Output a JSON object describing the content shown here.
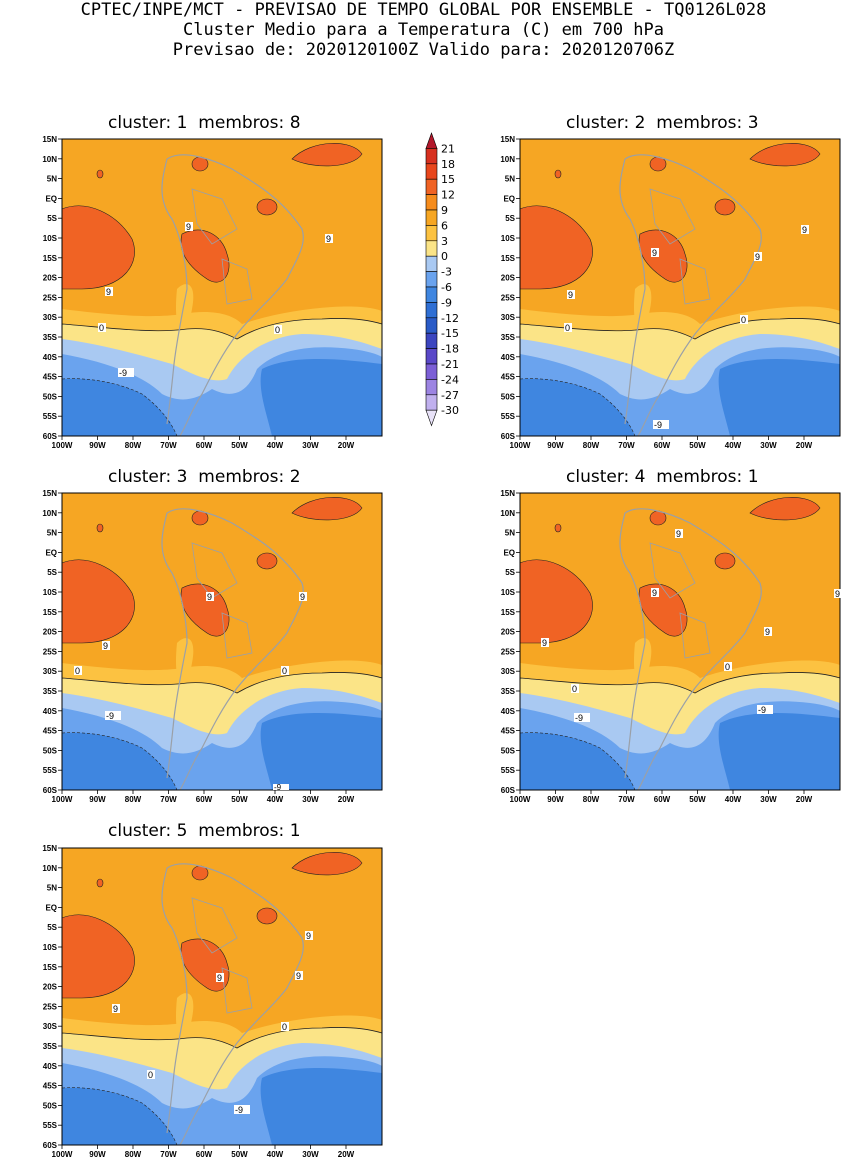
{
  "header": {
    "line1": "CPTEC/INPE/MCT - PREVISAO DE TEMPO GLOBAL POR ENSEMBLE - TQ0126L028",
    "line2": "Cluster Medio para a Temperatura (C) em 700 hPa",
    "line3": "Previsao de: 2020120100Z   Valido para: 2020120706Z"
  },
  "axes": {
    "lat_labels": [
      "15N",
      "10N",
      "5N",
      "EQ",
      "5S",
      "10S",
      "15S",
      "20S",
      "25S",
      "30S",
      "35S",
      "40S",
      "45S",
      "50S",
      "55S",
      "60S"
    ],
    "lon_labels": [
      "100W",
      "90W",
      "80W",
      "70W",
      "60W",
      "50W",
      "40W",
      "30W",
      "20W"
    ]
  },
  "colorbar": {
    "levels": [
      "21",
      "18",
      "15",
      "12",
      "9",
      "6",
      "3",
      "0",
      "-3",
      "-6",
      "-9",
      "-12",
      "-15",
      "-18",
      "-21",
      "-24",
      "-27",
      "-30"
    ],
    "colors": [
      "#b2182b",
      "#d7301f",
      "#e8461c",
      "#f06324",
      "#f68c1c",
      "#f6a623",
      "#fcc241",
      "#fbe487",
      "#a9c9f2",
      "#6aa3ee",
      "#3f86e0",
      "#2f6fd4",
      "#2a5bc7",
      "#3b45bf",
      "#5a48c8",
      "#7c5fd6",
      "#9c84e2",
      "#c0b0ee",
      "#e8e2f8"
    ]
  },
  "clusters": [
    {
      "id": 1,
      "cluster_label": "cluster:",
      "cluster_num": "1",
      "membros_label": "membros:",
      "membros_num": "8",
      "contour_labels": [
        "9",
        "9",
        "9",
        "0",
        "0",
        "-9"
      ]
    },
    {
      "id": 2,
      "cluster_label": "cluster:",
      "cluster_num": "2",
      "membros_label": "membros:",
      "membros_num": "3",
      "contour_labels": [
        "9",
        "9",
        "9",
        "9",
        "0",
        "0",
        "-9"
      ]
    },
    {
      "id": 3,
      "cluster_label": "cluster:",
      "cluster_num": "3",
      "membros_label": "membros:",
      "membros_num": "2",
      "contour_labels": [
        "9",
        "9",
        "9",
        "0",
        "0",
        "-9",
        "-9"
      ]
    },
    {
      "id": 4,
      "cluster_label": "cluster:",
      "cluster_num": "4",
      "membros_label": "membros:",
      "membros_num": "1",
      "contour_labels": [
        "9",
        "9",
        "9",
        "9",
        "9",
        "0",
        "0",
        "-9",
        "-9"
      ]
    },
    {
      "id": 5,
      "cluster_label": "cluster:",
      "cluster_num": "5",
      "membros_label": "membros:",
      "membros_num": "1",
      "contour_labels": [
        "9",
        "9",
        "9",
        "9",
        "0",
        "0",
        "-9"
      ]
    }
  ]
}
